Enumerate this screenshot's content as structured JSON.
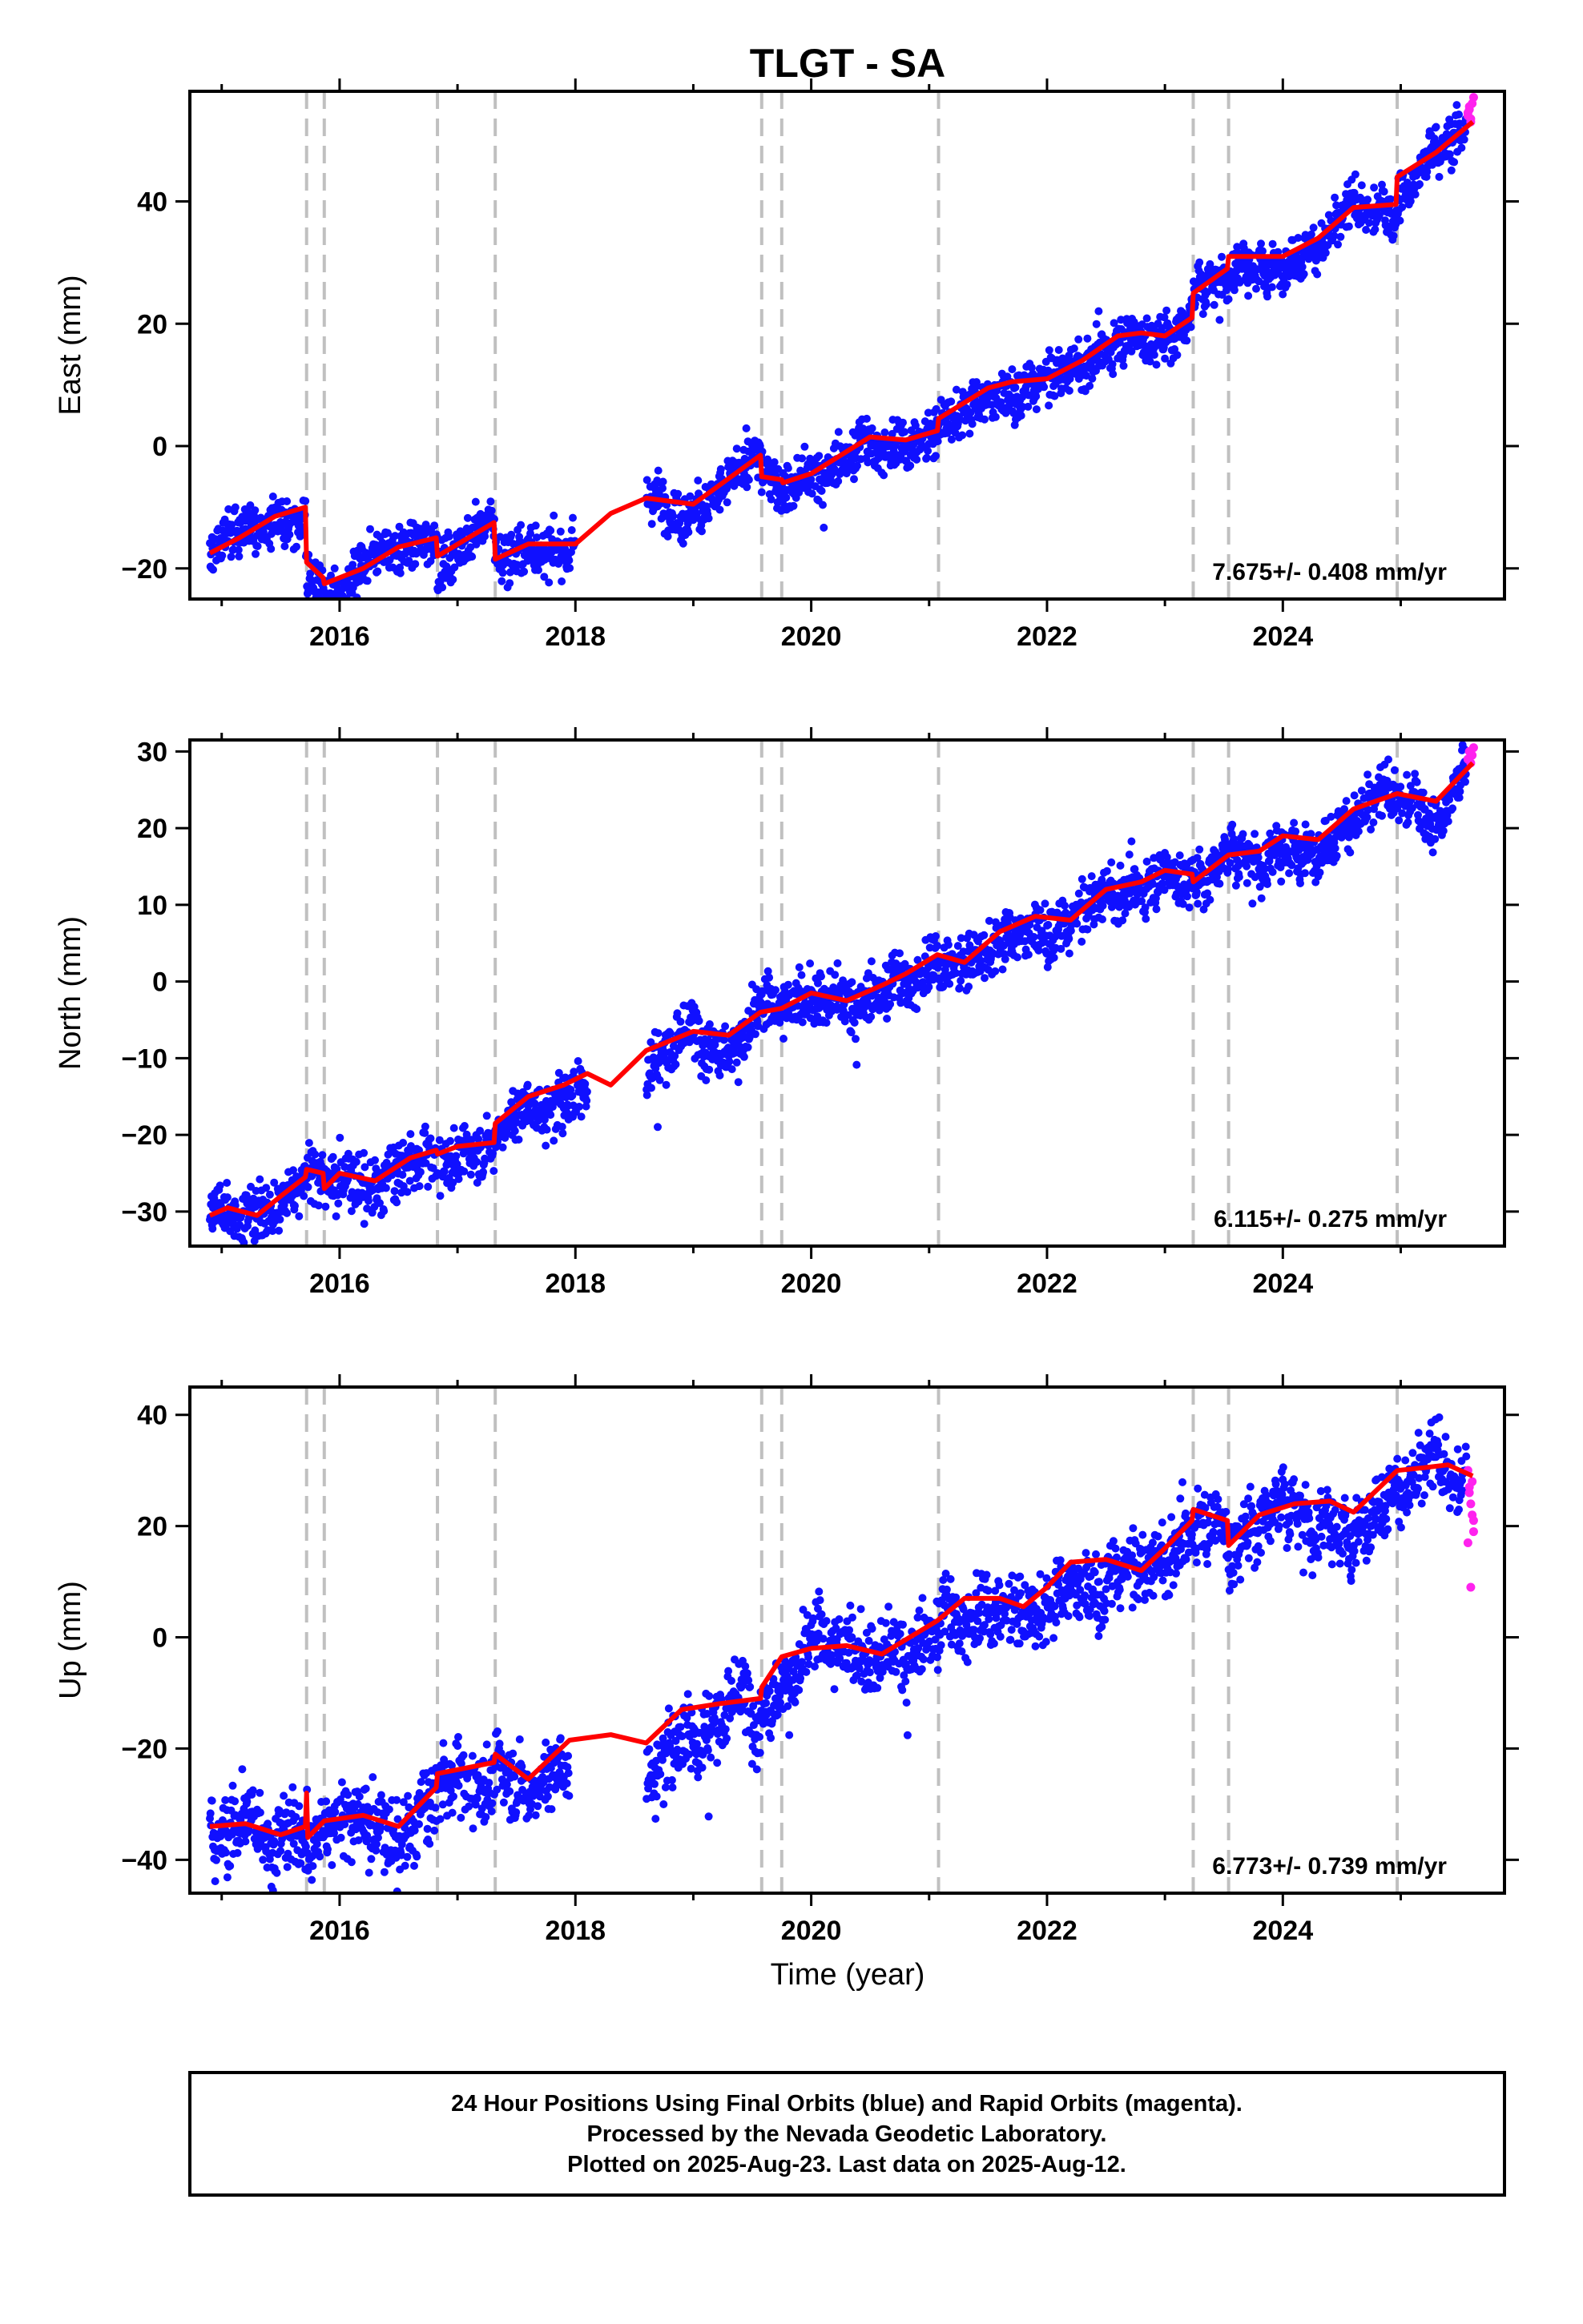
{
  "chart_data": {
    "type": "scatter",
    "title": "TLGT - SA",
    "xlabel": "Time (year)",
    "xlim": [
      2014.73,
      2025.88
    ],
    "x_ticks": [
      "2016",
      "2018",
      "2020",
      "2022",
      "2024"
    ],
    "equipment_change_epochs": [
      2015.72,
      2015.87,
      2016.83,
      2017.32,
      2019.58,
      2019.75,
      2021.08,
      2023.24,
      2023.54,
      2024.97
    ],
    "colors": {
      "final_orbits": "#1010ff",
      "rapid_orbits": "#ff22ee",
      "model": "#ff0000",
      "breaks": "#c0c0c0"
    },
    "last_data": 2025.61,
    "panels": [
      {
        "name": "east",
        "ylabel": "East (mm)",
        "ylim": [
          -25,
          58
        ],
        "y_ticks": [
          "-20",
          "0",
          "20",
          "40"
        ],
        "rate_label": "7.675+/- 0.408 mm/yr",
        "noise": 1.2,
        "spread": 2.0,
        "scale": 1,
        "gaps": [
          [
            2018.0,
            2018.6
          ]
        ],
        "rapid": [
          54,
          55,
          53.5,
          56,
          57,
          54.5,
          55.5,
          53
        ],
        "model": [
          [
            2014.9,
            -17.5
          ],
          [
            2015.15,
            -15
          ],
          [
            2015.45,
            -11.5
          ],
          [
            2015.71,
            -10
          ],
          [
            2015.72,
            -19
          ],
          [
            2015.86,
            -21.5
          ],
          [
            2015.87,
            -22.5
          ],
          [
            2016.2,
            -20
          ],
          [
            2016.5,
            -16.5
          ],
          [
            2016.82,
            -15
          ],
          [
            2016.83,
            -18
          ],
          [
            2017.31,
            -12.5
          ],
          [
            2017.32,
            -18.5
          ],
          [
            2017.6,
            -16
          ],
          [
            2018.0,
            -16
          ],
          [
            2018.3,
            -11
          ],
          [
            2018.6,
            -8.5
          ],
          [
            2019.0,
            -9.5
          ],
          [
            2019.57,
            -1.5
          ],
          [
            2019.58,
            -5
          ],
          [
            2019.75,
            -5.5
          ],
          [
            2019.76,
            -6
          ],
          [
            2020.0,
            -4.5
          ],
          [
            2020.5,
            1.5
          ],
          [
            2020.8,
            1
          ],
          [
            2021.07,
            2.5
          ],
          [
            2021.08,
            4.5
          ],
          [
            2021.5,
            9.5
          ],
          [
            2021.7,
            10.5
          ],
          [
            2022.0,
            11
          ],
          [
            2022.3,
            14
          ],
          [
            2022.6,
            18
          ],
          [
            2022.8,
            18.5
          ],
          [
            2023.0,
            18
          ],
          [
            2023.23,
            21
          ],
          [
            2023.24,
            25
          ],
          [
            2023.53,
            29
          ],
          [
            2023.54,
            31
          ],
          [
            2023.8,
            31
          ],
          [
            2024.0,
            31
          ],
          [
            2024.3,
            34
          ],
          [
            2024.6,
            39
          ],
          [
            2024.96,
            39.5
          ],
          [
            2024.97,
            44
          ],
          [
            2025.3,
            48
          ],
          [
            2025.61,
            53
          ]
        ]
      },
      {
        "name": "north",
        "ylabel": "North (mm)",
        "ylim": [
          -34.5,
          31.5
        ],
        "y_ticks": [
          "-30",
          "-20",
          "-10",
          "0",
          "10",
          "20",
          "30"
        ],
        "rate_label": "6.115+/- 0.275 mm/yr",
        "noise": 1.1,
        "spread": 1.8,
        "scale": 1,
        "gaps": [
          [
            2018.1,
            2018.6
          ]
        ],
        "rapid": [
          29,
          30,
          28.5,
          29.5,
          30.5,
          29
        ],
        "model": [
          [
            2014.9,
            -30.5
          ],
          [
            2015.05,
            -29.5
          ],
          [
            2015.3,
            -30.5
          ],
          [
            2015.5,
            -28
          ],
          [
            2015.71,
            -25.5
          ],
          [
            2015.72,
            -24.5
          ],
          [
            2015.86,
            -25
          ],
          [
            2015.87,
            -27
          ],
          [
            2016.0,
            -25
          ],
          [
            2016.3,
            -26
          ],
          [
            2016.6,
            -23
          ],
          [
            2016.82,
            -22
          ],
          [
            2016.83,
            -22.5
          ],
          [
            2017.0,
            -21.5
          ],
          [
            2017.31,
            -21
          ],
          [
            2017.32,
            -18.5
          ],
          [
            2017.6,
            -15
          ],
          [
            2017.9,
            -13.5
          ],
          [
            2018.1,
            -12
          ],
          [
            2018.3,
            -13.5
          ],
          [
            2018.6,
            -9
          ],
          [
            2019.0,
            -6.5
          ],
          [
            2019.3,
            -7
          ],
          [
            2019.57,
            -4
          ],
          [
            2019.75,
            -3.5
          ],
          [
            2020.0,
            -1.5
          ],
          [
            2020.3,
            -2.5
          ],
          [
            2020.6,
            -0.5
          ],
          [
            2020.8,
            1
          ],
          [
            2021.07,
            3.5
          ],
          [
            2021.3,
            2.5
          ],
          [
            2021.6,
            6.5
          ],
          [
            2021.9,
            8.5
          ],
          [
            2022.2,
            8
          ],
          [
            2022.5,
            12
          ],
          [
            2022.8,
            13
          ],
          [
            2023.0,
            14.5
          ],
          [
            2023.23,
            14
          ],
          [
            2023.24,
            13
          ],
          [
            2023.54,
            16.5
          ],
          [
            2023.8,
            17
          ],
          [
            2024.0,
            19
          ],
          [
            2024.3,
            18.5
          ],
          [
            2024.6,
            22.5
          ],
          [
            2024.97,
            24.5
          ],
          [
            2025.3,
            23.5
          ],
          [
            2025.61,
            28.5
          ]
        ]
      },
      {
        "name": "up",
        "ylabel": "Up (mm)",
        "ylim": [
          -46,
          45
        ],
        "y_ticks": [
          "-40",
          "-20",
          "0",
          "20",
          "40"
        ],
        "rate_label": "6.773+/- 0.739 mm/yr",
        "noise": 2.8,
        "spread": 3.2,
        "scale": 1,
        "gaps": [
          [
            2017.95,
            2018.6
          ]
        ],
        "rapid": [
          30,
          27,
          24,
          22,
          19,
          17,
          26,
          9,
          28,
          21
        ],
        "model": [
          [
            2014.9,
            -34
          ],
          [
            2015.2,
            -33.5
          ],
          [
            2015.5,
            -35.5
          ],
          [
            2015.71,
            -34
          ],
          [
            2015.72,
            -28
          ],
          [
            2015.73,
            -36
          ],
          [
            2015.87,
            -33
          ],
          [
            2016.2,
            -32
          ],
          [
            2016.5,
            -34
          ],
          [
            2016.82,
            -27
          ],
          [
            2016.83,
            -24.5
          ],
          [
            2017.31,
            -22.5
          ],
          [
            2017.32,
            -21
          ],
          [
            2017.6,
            -25.5
          ],
          [
            2017.95,
            -18.5
          ],
          [
            2018.3,
            -17.5
          ],
          [
            2018.6,
            -19
          ],
          [
            2018.9,
            -13
          ],
          [
            2019.2,
            -12
          ],
          [
            2019.57,
            -11
          ],
          [
            2019.58,
            -9
          ],
          [
            2019.75,
            -3.5
          ],
          [
            2020.0,
            -2
          ],
          [
            2020.3,
            -1.5
          ],
          [
            2020.6,
            -3
          ],
          [
            2021.07,
            3
          ],
          [
            2021.3,
            7
          ],
          [
            2021.6,
            7
          ],
          [
            2021.8,
            5.5
          ],
          [
            2022.0,
            9
          ],
          [
            2022.2,
            13.5
          ],
          [
            2022.5,
            14
          ],
          [
            2022.8,
            12
          ],
          [
            2023.0,
            16
          ],
          [
            2023.23,
            21
          ],
          [
            2023.24,
            23
          ],
          [
            2023.53,
            21
          ],
          [
            2023.54,
            16.5
          ],
          [
            2023.8,
            22
          ],
          [
            2024.1,
            24
          ],
          [
            2024.4,
            24.5
          ],
          [
            2024.6,
            22.5
          ],
          [
            2024.97,
            30
          ],
          [
            2025.2,
            30.5
          ],
          [
            2025.4,
            31
          ],
          [
            2025.61,
            29
          ]
        ]
      }
    ]
  },
  "footer": {
    "line1": "24 Hour Positions Using Final Orbits (blue) and Rapid Orbits (magenta).",
    "line2": "Processed by the Nevada Geodetic Laboratory.",
    "line3": "Plotted on 2025-Aug-23. Last data on 2025-Aug-12."
  }
}
